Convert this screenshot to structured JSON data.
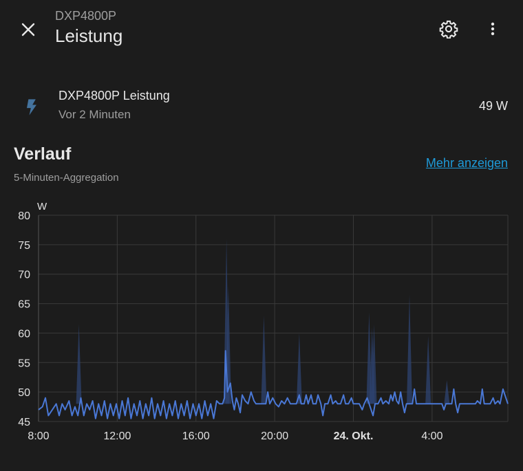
{
  "header": {
    "subtitle": "DXP4800P",
    "title": "Leistung",
    "close_icon": "close-icon",
    "settings_icon": "gear-icon",
    "menu_icon": "more-vertical-icon"
  },
  "entity": {
    "icon": "lightning-bolt-icon",
    "name": "DXP4800P Leistung",
    "last_changed": "Vor 2 Minuten",
    "state": "49 W"
  },
  "history": {
    "title": "Verlauf",
    "subtitle": "5-Minuten-Aggregation",
    "more_link": "Mehr anzeigen"
  },
  "colors": {
    "background": "#1c1c1c",
    "line": "#4a78d6",
    "band": "#2e4370",
    "link": "#1e9ad8",
    "icon": "#44739e"
  },
  "chart_data": {
    "type": "line",
    "unit_label": "W",
    "ylim": [
      45,
      80
    ],
    "y_ticks": [
      "80",
      "75",
      "70",
      "65",
      "60",
      "55",
      "50",
      "45"
    ],
    "x_ticks": [
      "8:00",
      "12:00",
      "16:00",
      "20:00",
      "24. Okt.",
      "4:00"
    ],
    "grid": true,
    "x_hours_start": 8,
    "x_hours_end": 31.85,
    "series": [
      {
        "values": [
          [
            8.0,
            47.0
          ],
          [
            8.2,
            47.5
          ],
          [
            8.35,
            49.0
          ],
          [
            8.5,
            46.0
          ],
          [
            8.7,
            47.0
          ],
          [
            8.9,
            48.0
          ],
          [
            9.05,
            46.0
          ],
          [
            9.2,
            48.0
          ],
          [
            9.35,
            47.0
          ],
          [
            9.55,
            48.5
          ],
          [
            9.7,
            46.0
          ],
          [
            9.85,
            47.5
          ],
          [
            10.0,
            46.0
          ],
          [
            10.15,
            49.0
          ],
          [
            10.3,
            46.0
          ],
          [
            10.45,
            48.0
          ],
          [
            10.6,
            47.0
          ],
          [
            10.75,
            48.5
          ],
          [
            10.9,
            45.5
          ],
          [
            11.05,
            48.0
          ],
          [
            11.2,
            46.0
          ],
          [
            11.35,
            48.5
          ],
          [
            11.5,
            45.5
          ],
          [
            11.65,
            48.0
          ],
          [
            11.8,
            46.0
          ],
          [
            11.95,
            48.0
          ],
          [
            12.1,
            45.5
          ],
          [
            12.25,
            48.5
          ],
          [
            12.4,
            46.0
          ],
          [
            12.55,
            49.0
          ],
          [
            12.7,
            45.5
          ],
          [
            12.85,
            48.0
          ],
          [
            13.0,
            46.0
          ],
          [
            13.15,
            48.5
          ],
          [
            13.3,
            45.5
          ],
          [
            13.45,
            48.0
          ],
          [
            13.6,
            46.0
          ],
          [
            13.75,
            49.0
          ],
          [
            13.9,
            45.5
          ],
          [
            14.05,
            48.0
          ],
          [
            14.2,
            46.0
          ],
          [
            14.35,
            48.5
          ],
          [
            14.5,
            45.5
          ],
          [
            14.65,
            48.0
          ],
          [
            14.8,
            46.0
          ],
          [
            14.95,
            48.5
          ],
          [
            15.1,
            45.5
          ],
          [
            15.25,
            48.0
          ],
          [
            15.4,
            46.0
          ],
          [
            15.55,
            48.5
          ],
          [
            15.7,
            45.5
          ],
          [
            15.85,
            48.0
          ],
          [
            16.0,
            46.0
          ],
          [
            16.15,
            48.0
          ],
          [
            16.3,
            45.5
          ],
          [
            16.45,
            48.5
          ],
          [
            16.6,
            46.0
          ],
          [
            16.75,
            48.0
          ],
          [
            16.9,
            45.5
          ],
          [
            17.05,
            48.5
          ],
          [
            17.2,
            48.0
          ],
          [
            17.35,
            48.0
          ],
          [
            17.45,
            49.0
          ],
          [
            17.5,
            57.0
          ],
          [
            17.6,
            50.0
          ],
          [
            17.75,
            51.5
          ],
          [
            17.85,
            48.5
          ],
          [
            17.95,
            47.0
          ],
          [
            18.05,
            49.0
          ],
          [
            18.15,
            48.0
          ],
          [
            18.25,
            46.5
          ],
          [
            18.35,
            49.5
          ],
          [
            18.5,
            48.5
          ],
          [
            18.65,
            48.0
          ],
          [
            18.8,
            50.0
          ],
          [
            18.95,
            48.5
          ],
          [
            19.05,
            48.0
          ],
          [
            19.25,
            48.0
          ],
          [
            19.4,
            48.0
          ],
          [
            19.55,
            48.0
          ],
          [
            19.65,
            50.0
          ],
          [
            19.75,
            48.0
          ],
          [
            19.9,
            49.0
          ],
          [
            20.05,
            48.0
          ],
          [
            20.2,
            47.5
          ],
          [
            20.35,
            48.5
          ],
          [
            20.5,
            48.0
          ],
          [
            20.65,
            49.0
          ],
          [
            20.8,
            48.0
          ],
          [
            20.95,
            48.0
          ],
          [
            21.1,
            48.0
          ],
          [
            21.25,
            49.5
          ],
          [
            21.35,
            48.0
          ],
          [
            21.5,
            48.0
          ],
          [
            21.6,
            49.5
          ],
          [
            21.7,
            48.0
          ],
          [
            21.85,
            49.5
          ],
          [
            21.95,
            48.0
          ],
          [
            22.1,
            48.0
          ],
          [
            22.2,
            49.5
          ],
          [
            22.35,
            48.0
          ],
          [
            22.45,
            46.0
          ],
          [
            22.55,
            48.0
          ],
          [
            22.7,
            48.0
          ],
          [
            22.85,
            49.5
          ],
          [
            22.95,
            48.0
          ],
          [
            23.1,
            48.5
          ],
          [
            23.2,
            48.0
          ],
          [
            23.35,
            48.0
          ],
          [
            23.5,
            49.5
          ],
          [
            23.6,
            48.0
          ],
          [
            23.75,
            48.0
          ],
          [
            23.9,
            49.0
          ],
          [
            24.0,
            48.0
          ],
          [
            24.15,
            48.0
          ],
          [
            24.3,
            48.0
          ],
          [
            24.45,
            47.0
          ],
          [
            24.55,
            48.0
          ],
          [
            24.7,
            49.0
          ],
          [
            24.8,
            48.0
          ],
          [
            24.9,
            47.0
          ],
          [
            25.0,
            46.0
          ],
          [
            25.1,
            48.0
          ],
          [
            25.25,
            48.0
          ],
          [
            25.4,
            49.0
          ],
          [
            25.5,
            48.0
          ],
          [
            25.65,
            48.5
          ],
          [
            25.8,
            48.0
          ],
          [
            25.9,
            49.5
          ],
          [
            26.0,
            48.5
          ],
          [
            26.1,
            50.0
          ],
          [
            26.2,
            48.5
          ],
          [
            26.3,
            48.0
          ],
          [
            26.4,
            50.0
          ],
          [
            26.5,
            48.0
          ],
          [
            26.6,
            46.5
          ],
          [
            26.7,
            48.0
          ],
          [
            26.85,
            48.0
          ],
          [
            27.0,
            48.0
          ],
          [
            27.1,
            50.5
          ],
          [
            27.2,
            48.0
          ],
          [
            27.35,
            48.0
          ],
          [
            27.5,
            48.0
          ],
          [
            27.65,
            48.0
          ],
          [
            27.8,
            48.0
          ],
          [
            28.0,
            48.0
          ],
          [
            28.2,
            48.0
          ],
          [
            28.4,
            48.0
          ],
          [
            28.5,
            48.0
          ],
          [
            28.6,
            47.0
          ],
          [
            28.7,
            48.0
          ],
          [
            28.85,
            48.0
          ],
          [
            29.0,
            48.0
          ],
          [
            29.1,
            50.5
          ],
          [
            29.2,
            48.0
          ],
          [
            29.3,
            46.5
          ],
          [
            29.4,
            48.0
          ],
          [
            29.6,
            48.0
          ],
          [
            29.8,
            48.0
          ],
          [
            30.0,
            48.0
          ],
          [
            30.2,
            48.0
          ],
          [
            30.3,
            48.5
          ],
          [
            30.45,
            48.0
          ],
          [
            30.55,
            50.5
          ],
          [
            30.65,
            48.0
          ],
          [
            30.8,
            48.0
          ],
          [
            30.95,
            48.0
          ],
          [
            31.1,
            49.0
          ],
          [
            31.2,
            48.0
          ],
          [
            31.35,
            48.5
          ],
          [
            31.45,
            48.0
          ],
          [
            31.6,
            50.5
          ],
          [
            31.7,
            49.5
          ],
          [
            31.85,
            48.0
          ]
        ]
      }
    ],
    "max_band": [
      [
        10.05,
        61.5
      ],
      [
        17.55,
        76.0
      ],
      [
        17.65,
        68.0
      ],
      [
        19.45,
        63.0
      ],
      [
        21.25,
        60.0
      ],
      [
        24.8,
        63.5
      ],
      [
        24.95,
        61.0
      ],
      [
        25.05,
        61.5
      ],
      [
        26.85,
        66.5
      ],
      [
        27.8,
        59.5
      ],
      [
        28.75,
        52.0
      ]
    ]
  }
}
